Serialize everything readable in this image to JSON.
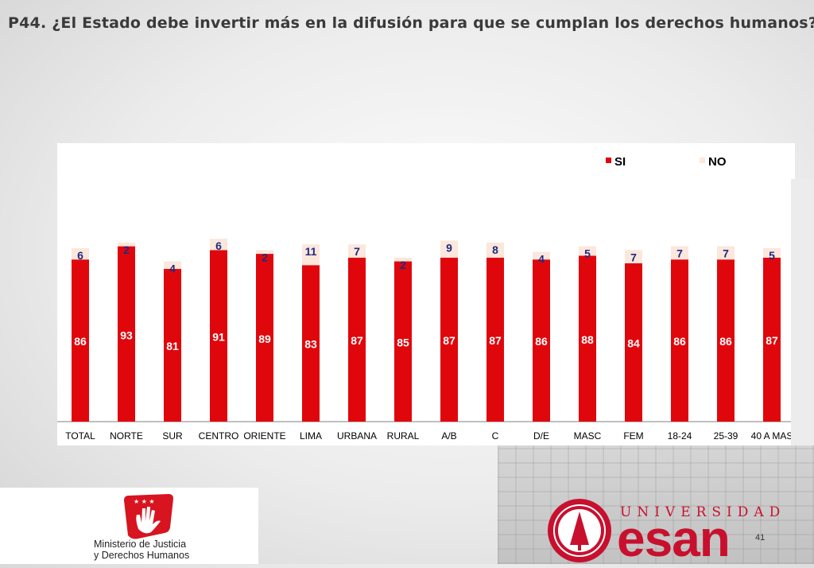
{
  "slide": {
    "title": "P44. ¿El Estado debe invertir más en la difusión para que se cumplan los derechos humanos?",
    "page_number": "41"
  },
  "logos": {
    "minjus_line1": "Ministerio de Justicia",
    "minjus_line2": "y Derechos Humanos",
    "esan_top": "UNIVERSIDAD",
    "esan_name": "esan"
  },
  "chart_data": {
    "type": "bar",
    "stacked": true,
    "categories": [
      "TOTAL",
      "NORTE",
      "SUR",
      "CENTRO",
      "ORIENTE",
      "LIMA",
      "URBANA",
      "RURAL",
      "A/B",
      "C",
      "D/E",
      "MASC",
      "FEM",
      "18-24",
      "25-39",
      "40 A MAS"
    ],
    "series": [
      {
        "name": "SI",
        "color": "#e0070c",
        "values": [
          86,
          93,
          81,
          91,
          89,
          83,
          87,
          85,
          87,
          87,
          86,
          88,
          84,
          86,
          86,
          87
        ]
      },
      {
        "name": "NO",
        "color": "#fbe7dc",
        "values": [
          6,
          2,
          4,
          6,
          2,
          11,
          7,
          2,
          9,
          8,
          4,
          5,
          7,
          7,
          7,
          5
        ]
      }
    ],
    "legend": "top-right",
    "grid": false,
    "title": "",
    "xlabel": "",
    "ylabel": ""
  }
}
